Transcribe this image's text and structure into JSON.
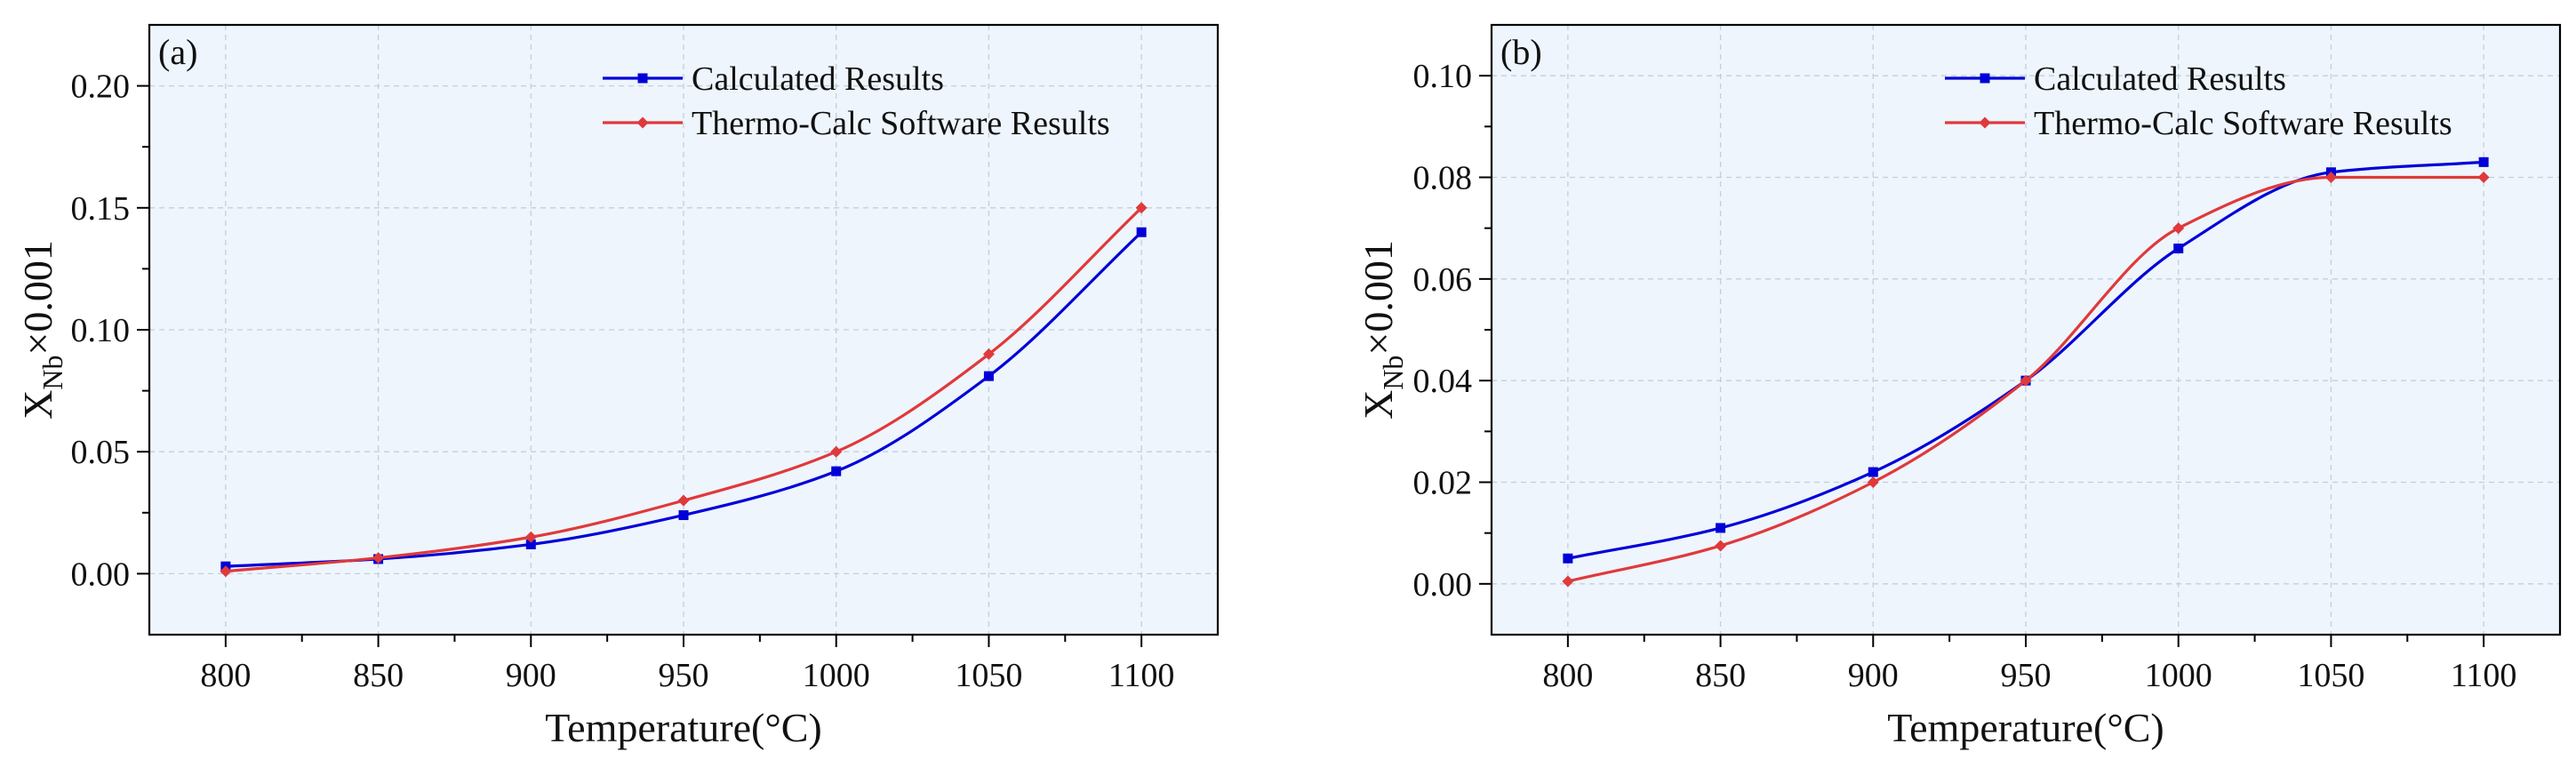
{
  "figure": {
    "colors": {
      "plot_bg": "#eef5fc",
      "grid": "#c4cfdb",
      "axis": "#000000",
      "calculated": "#0000d8",
      "thermo": "#e0393b"
    }
  },
  "chart_data": [
    {
      "type": "line",
      "panel_label": "(a)",
      "xlabel": "Temperature(°C)",
      "ylabel": {
        "main": "X",
        "sub": "Nb",
        "suffix": "×0.001"
      },
      "xlim": [
        775,
        1125
      ],
      "ylim": [
        -0.025,
        0.225
      ],
      "xticks": [
        800,
        850,
        900,
        950,
        1000,
        1050,
        1100
      ],
      "xtick_labels": [
        "800",
        "850",
        "900",
        "950",
        "1000",
        "1050",
        "1100"
      ],
      "yticks": [
        0.0,
        0.05,
        0.1,
        0.15,
        0.2
      ],
      "ytick_labels": [
        "0.00",
        "0.05",
        "0.10",
        "0.15",
        "0.20"
      ],
      "grid": true,
      "legend_position": "top-right",
      "x": [
        800,
        850,
        900,
        950,
        1000,
        1050,
        1100
      ],
      "series": [
        {
          "name": "Calculated Results",
          "marker": "square",
          "color": "#0000d8",
          "values": [
            0.003,
            0.006,
            0.012,
            0.024,
            0.042,
            0.081,
            0.14
          ]
        },
        {
          "name": "Thermo-Calc Software Results",
          "marker": "diamond",
          "color": "#e0393b",
          "values": [
            0.001,
            0.0065,
            0.015,
            0.03,
            0.05,
            0.09,
            0.15
          ]
        }
      ]
    },
    {
      "type": "line",
      "panel_label": "(b)",
      "xlabel": "Temperature(°C)",
      "ylabel": {
        "main": "X",
        "sub": "Nb",
        "suffix": "×0.001"
      },
      "xlim": [
        775,
        1125
      ],
      "ylim": [
        -0.01,
        0.11
      ],
      "xticks": [
        800,
        850,
        900,
        950,
        1000,
        1050,
        1100
      ],
      "xtick_labels": [
        "800",
        "850",
        "900",
        "950",
        "1000",
        "1050",
        "1100"
      ],
      "yticks": [
        0.0,
        0.02,
        0.04,
        0.06,
        0.08,
        0.1
      ],
      "ytick_labels": [
        "0.00",
        "0.02",
        "0.04",
        "0.06",
        "0.08",
        "0.10"
      ],
      "grid": true,
      "legend_position": "top-right",
      "x": [
        800,
        850,
        900,
        950,
        1000,
        1050,
        1100
      ],
      "series": [
        {
          "name": "Calculated Results",
          "marker": "square",
          "color": "#0000d8",
          "values": [
            0.005,
            0.011,
            0.022,
            0.04,
            0.066,
            0.081,
            0.083
          ]
        },
        {
          "name": "Thermo-Calc Software Results",
          "marker": "diamond",
          "color": "#e0393b",
          "values": [
            0.0005,
            0.0075,
            0.02,
            0.04,
            0.07,
            0.08,
            0.08
          ]
        }
      ]
    }
  ]
}
